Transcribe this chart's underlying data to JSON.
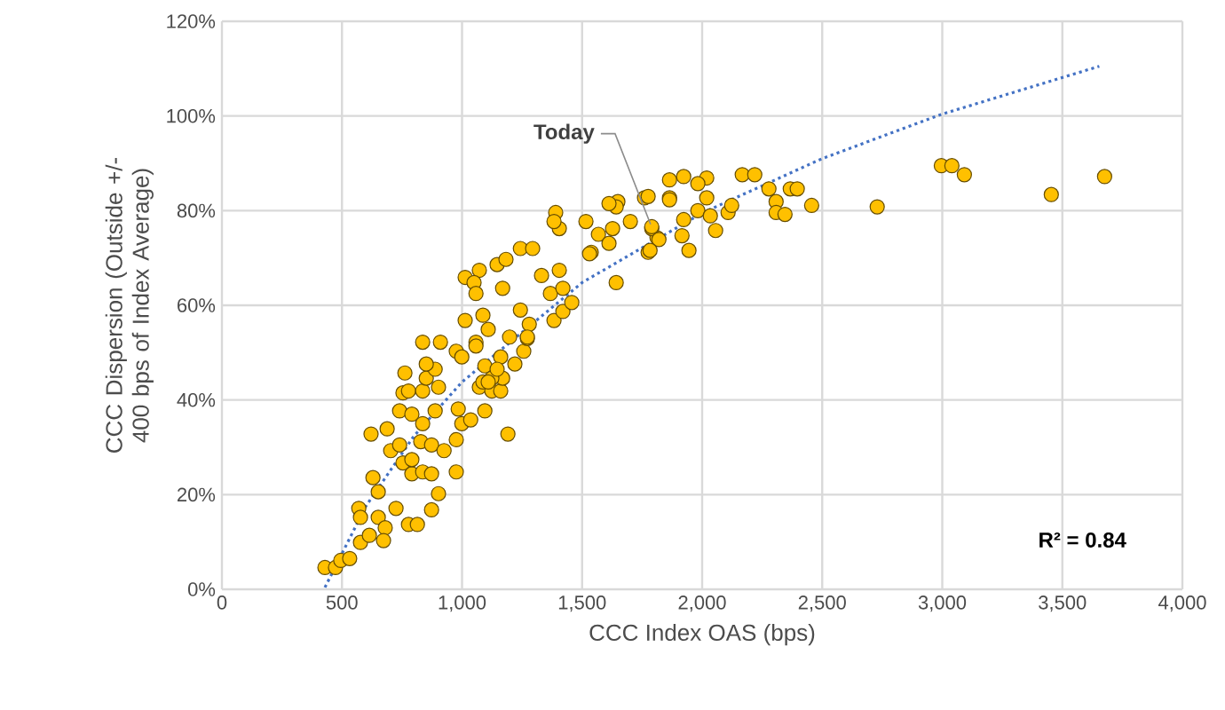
{
  "chart_data": {
    "type": "scatter",
    "xlabel": "CCC Index OAS (bps)",
    "ylabel": "CCC Dispersion (Outside +/- 400 bps of Index Average)",
    "xlim": [
      0,
      4000
    ],
    "ylim": [
      0,
      120
    ],
    "grid": true,
    "xticks": [
      {
        "value": 0,
        "label": "0"
      },
      {
        "value": 500,
        "label": "500"
      },
      {
        "value": 1000,
        "label": "1,000"
      },
      {
        "value": 1500,
        "label": "1,500"
      },
      {
        "value": 2000,
        "label": "2,000"
      },
      {
        "value": 2500,
        "label": "2,500"
      },
      {
        "value": 3000,
        "label": "3,000"
      },
      {
        "value": 3500,
        "label": "3,500"
      },
      {
        "value": 4000,
        "label": "4,000"
      }
    ],
    "yticks": [
      {
        "value": 0,
        "label": "0%"
      },
      {
        "value": 20,
        "label": "20%"
      },
      {
        "value": 40,
        "label": "40%"
      },
      {
        "value": 60,
        "label": "60%"
      },
      {
        "value": 80,
        "label": "80%"
      },
      {
        "value": 100,
        "label": "100%"
      },
      {
        "value": 120,
        "label": "120%"
      }
    ],
    "annotations": [
      {
        "text": "Today",
        "x": 1800,
        "y": 76
      },
      "R² = 0.84"
    ],
    "series": [
      {
        "marker": "circle",
        "color": "#ffc000",
        "x": [
          429,
          473,
          495,
          532,
          577,
          570,
          577,
          614,
          651,
          680,
          673,
          725,
          777,
          814,
          873,
          902,
          976,
          1191,
          629,
          651,
          621,
          688,
          703,
          754,
          791,
          836,
          873,
          740,
          791,
          828,
          873,
          925,
          976,
          740,
          791,
          836,
          888,
          999,
          1036,
          1095,
          984,
          754,
          777,
          836,
          902,
          762,
          851,
          888,
          1072,
          1087,
          1124,
          1161,
          1169,
          1095,
          1124,
          851,
          910,
          976,
          999,
          1058,
          836,
          1161,
          1257,
          1198,
          1272,
          1013,
          1058,
          1087,
          1109,
          1013,
          1072,
          1146,
          1183,
          1050,
          1058,
          1169,
          1243,
          1294,
          1243,
          1280,
          1272,
          1331,
          1405,
          1368,
          1420,
          1383,
          1420,
          1457,
          1390,
          1405,
          1383,
          1516,
          1568,
          1627,
          1642,
          1538,
          1612,
          1649,
          1642,
          1701,
          1760,
          1775,
          1812,
          1864,
          1864,
          1790,
          1146,
          1220,
          1109,
          1923,
          2019,
          1982,
          2019,
          1982,
          2034,
          2108,
          2123,
          2056,
          1923,
          1945,
          1916,
          1864,
          1775,
          1790,
          1820,
          1783,
          2167,
          2219,
          2278,
          2308,
          2308,
          2345,
          2367,
          2396,
          2456,
          1612,
          1531,
          2729,
          2996,
          3040,
          3092,
          3454,
          3676
        ],
        "values": [
          4.6,
          4.6,
          6.1,
          6.5,
          9.9,
          17.1,
          15.2,
          11.4,
          15.2,
          13,
          10.3,
          17.1,
          13.7,
          13.7,
          16.8,
          20.2,
          24.8,
          32.8,
          23.6,
          20.6,
          32.8,
          33.9,
          29.3,
          26.7,
          24.4,
          24.8,
          24.4,
          30.5,
          27.4,
          31.2,
          30.5,
          29.3,
          31.6,
          37.7,
          37,
          35,
          37.7,
          35,
          35.8,
          37.7,
          38.1,
          41.5,
          41.9,
          41.9,
          42.7,
          45.7,
          44.6,
          46.5,
          42.7,
          43.8,
          41.9,
          41.9,
          44.6,
          47.2,
          44.6,
          47.6,
          52.2,
          50.3,
          49.1,
          52.2,
          52.2,
          49.1,
          50.3,
          53.3,
          53,
          56.8,
          51.4,
          57.9,
          54.9,
          65.9,
          67.4,
          68.6,
          69.7,
          64.8,
          62.5,
          63.6,
          72,
          72,
          59,
          56,
          53.3,
          66.3,
          67.4,
          62.5,
          63.6,
          56.8,
          58.7,
          60.6,
          79.6,
          76.2,
          77.7,
          77.7,
          75,
          76.2,
          64.8,
          71.2,
          73.1,
          81.9,
          80.8,
          77.7,
          82.7,
          71.2,
          74.3,
          86.5,
          82.7,
          76.2,
          46.5,
          47.6,
          43.8,
          87.2,
          86.9,
          85.7,
          82.7,
          80,
          78.9,
          79.6,
          81.1,
          75.8,
          78.1,
          71.6,
          74.7,
          82.3,
          83,
          76.6,
          73.9,
          71.6,
          87.6,
          87.6,
          84.6,
          81.9,
          79.6,
          79.2,
          84.6,
          84.6,
          81.1,
          81.5,
          70.9,
          80.8,
          89.5,
          89.5,
          87.6,
          83.4,
          87.2
        ]
      },
      {
        "type": "line",
        "marker": "none",
        "line_style": "dotted",
        "color": "#4472c4",
        "x": [
          429,
          600,
          800,
          1000,
          1500,
          2000,
          2500,
          3000,
          3654
        ],
        "values": [
          0.4,
          17.6,
          32.4,
          43.8,
          64.8,
          79.5,
          91.0,
          100.4,
          110.5
        ]
      }
    ]
  }
}
